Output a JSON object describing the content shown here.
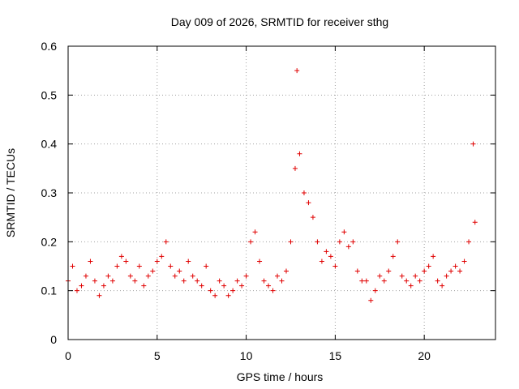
{
  "chart_data": {
    "type": "scatter",
    "title": "Day 009 of 2026, SRMTID for receiver sthg",
    "xlabel": "GPS time / hours",
    "ylabel": "SRMTID / TECUs",
    "xlim": [
      0,
      24
    ],
    "ylim": [
      0,
      0.6
    ],
    "xticks": [
      0,
      5,
      10,
      15,
      20
    ],
    "yticks": [
      0,
      0.1,
      0.2,
      0.3,
      0.4,
      0.5,
      0.6
    ],
    "xtick_labels": [
      "0",
      "5",
      "10",
      "15",
      "20"
    ],
    "ytick_labels": [
      "0",
      "0.1",
      "0.2",
      "0.3",
      "0.4",
      "0.5",
      "0.6"
    ],
    "grid": true,
    "marker": "+",
    "color": "#e00000",
    "series": [
      {
        "name": "SRMTID",
        "x": [
          0.0,
          0.25,
          0.5,
          0.75,
          1.0,
          1.25,
          1.5,
          1.75,
          2.0,
          2.25,
          2.5,
          2.75,
          3.0,
          3.25,
          3.5,
          3.75,
          4.0,
          4.25,
          4.5,
          4.75,
          5.0,
          5.25,
          5.5,
          5.75,
          6.0,
          6.25,
          6.5,
          6.75,
          7.0,
          7.25,
          7.5,
          7.75,
          8.0,
          8.25,
          8.5,
          8.75,
          9.0,
          9.25,
          9.5,
          9.75,
          10.0,
          10.25,
          10.5,
          10.75,
          11.0,
          11.25,
          11.5,
          11.75,
          12.0,
          12.25,
          12.5,
          12.75,
          12.85,
          13.0,
          13.25,
          13.5,
          13.75,
          14.0,
          14.25,
          14.5,
          14.75,
          15.0,
          15.25,
          15.5,
          15.75,
          16.0,
          16.25,
          16.5,
          16.75,
          17.0,
          17.25,
          17.5,
          17.75,
          18.0,
          18.25,
          18.5,
          18.75,
          19.0,
          19.25,
          19.5,
          19.75,
          20.0,
          20.25,
          20.5,
          20.75,
          21.0,
          21.25,
          21.5,
          21.75,
          22.0,
          22.25,
          22.5,
          22.75,
          22.85
        ],
        "y": [
          0.12,
          0.15,
          0.1,
          0.11,
          0.13,
          0.16,
          0.12,
          0.09,
          0.11,
          0.13,
          0.12,
          0.15,
          0.17,
          0.16,
          0.13,
          0.12,
          0.15,
          0.11,
          0.13,
          0.14,
          0.16,
          0.17,
          0.2,
          0.15,
          0.13,
          0.14,
          0.12,
          0.16,
          0.13,
          0.12,
          0.11,
          0.15,
          0.1,
          0.09,
          0.12,
          0.11,
          0.09,
          0.1,
          0.12,
          0.11,
          0.13,
          0.2,
          0.22,
          0.16,
          0.12,
          0.11,
          0.1,
          0.13,
          0.12,
          0.14,
          0.2,
          0.35,
          0.55,
          0.38,
          0.3,
          0.28,
          0.25,
          0.2,
          0.16,
          0.18,
          0.17,
          0.15,
          0.2,
          0.22,
          0.19,
          0.2,
          0.14,
          0.12,
          0.12,
          0.08,
          0.1,
          0.13,
          0.12,
          0.14,
          0.17,
          0.2,
          0.13,
          0.12,
          0.11,
          0.13,
          0.12,
          0.14,
          0.15,
          0.17,
          0.12,
          0.11,
          0.13,
          0.14,
          0.15,
          0.14,
          0.16,
          0.2,
          0.4,
          0.24
        ]
      }
    ]
  }
}
